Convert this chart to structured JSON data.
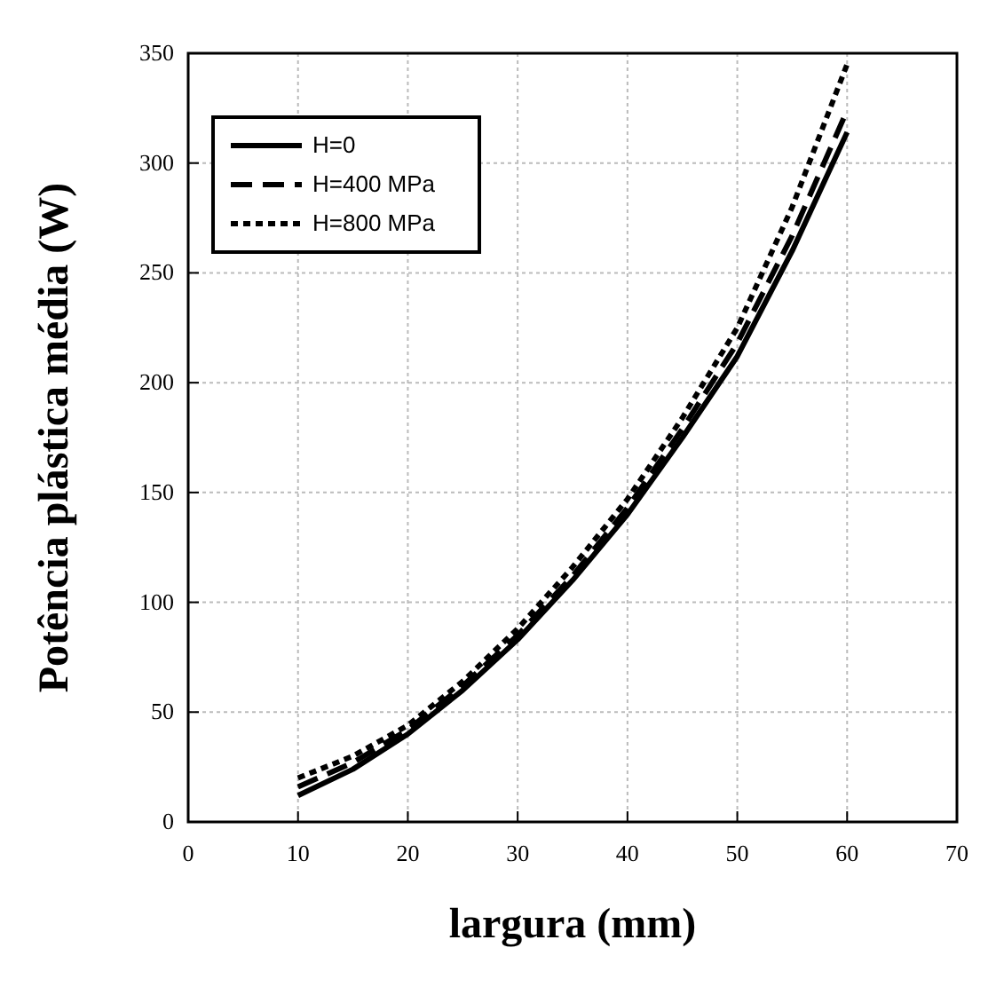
{
  "chart_data": {
    "type": "line",
    "xlabel": "largura (mm)",
    "ylabel": "Potência plástica média (W)",
    "xlim": [
      0,
      70
    ],
    "xticks": [
      0,
      10,
      20,
      30,
      40,
      50,
      60,
      70
    ],
    "ylim": [
      0,
      350
    ],
    "yticks": [
      0,
      50,
      100,
      150,
      200,
      250,
      300,
      350
    ],
    "grid": true,
    "legend": "top left",
    "x": [
      10,
      15,
      20,
      25,
      30,
      35,
      40,
      45,
      50,
      55,
      60
    ],
    "series": [
      {
        "name": "H=0",
        "color": "#000000",
        "line_style": "solid",
        "values": [
          12,
          24,
          40,
          60,
          83,
          110,
          140,
          175,
          212,
          260,
          314
        ]
      },
      {
        "name": "H=400 MPa",
        "color": "#000000",
        "line_style": "dashed",
        "values": [
          16,
          27,
          42,
          62,
          85,
          112,
          143,
          179,
          218,
          267,
          324
        ]
      },
      {
        "name": "H=800 MPa",
        "color": "#000000",
        "line_style": "dotted",
        "values": [
          20,
          30,
          44,
          64,
          88,
          116,
          147,
          184,
          225,
          280,
          345
        ]
      }
    ]
  }
}
